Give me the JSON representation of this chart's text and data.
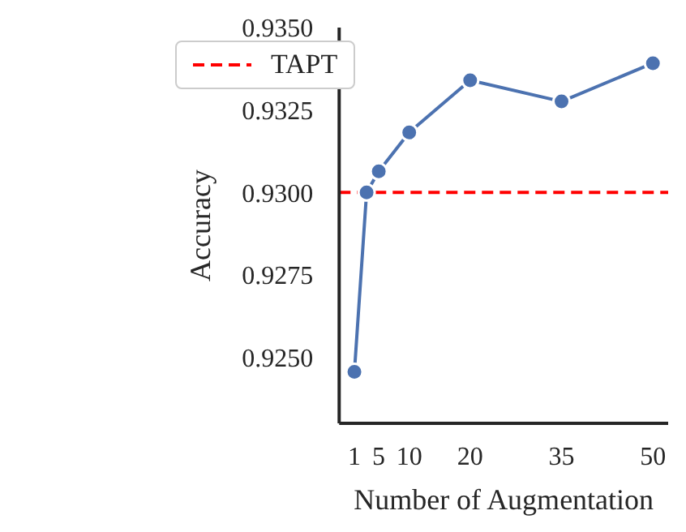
{
  "chart_data": {
    "type": "line",
    "xlabel": "Number of Augmentation",
    "ylabel": "Accuracy",
    "x": [
      1,
      3,
      5,
      10,
      20,
      35,
      50
    ],
    "series": [
      {
        "color": "#4c72b0",
        "values": [
          0.92456,
          0.93,
          0.93064,
          0.93182,
          0.9334,
          0.93276,
          0.93392
        ]
      }
    ],
    "xlim": [
      -1.5,
      52.5
    ],
    "xticks": [
      1,
      5,
      10,
      20,
      35,
      50
    ],
    "ylim": [
      0.923,
      0.935
    ],
    "yticks": [
      {
        "value": 0.925,
        "label": "0.9250"
      },
      {
        "value": 0.9275,
        "label": "0.9275"
      },
      {
        "value": 0.93,
        "label": "0.9300"
      },
      {
        "value": 0.9325,
        "label": "0.9325"
      },
      {
        "value": 0.935,
        "label": "0.9350"
      }
    ],
    "ref_lines": [
      {
        "axis": "y",
        "value": 0.93,
        "label": "TAPT",
        "color": "#ff0000",
        "line_style": "dashed"
      }
    ],
    "legend": "top left",
    "marker": "circle",
    "grid": false
  }
}
